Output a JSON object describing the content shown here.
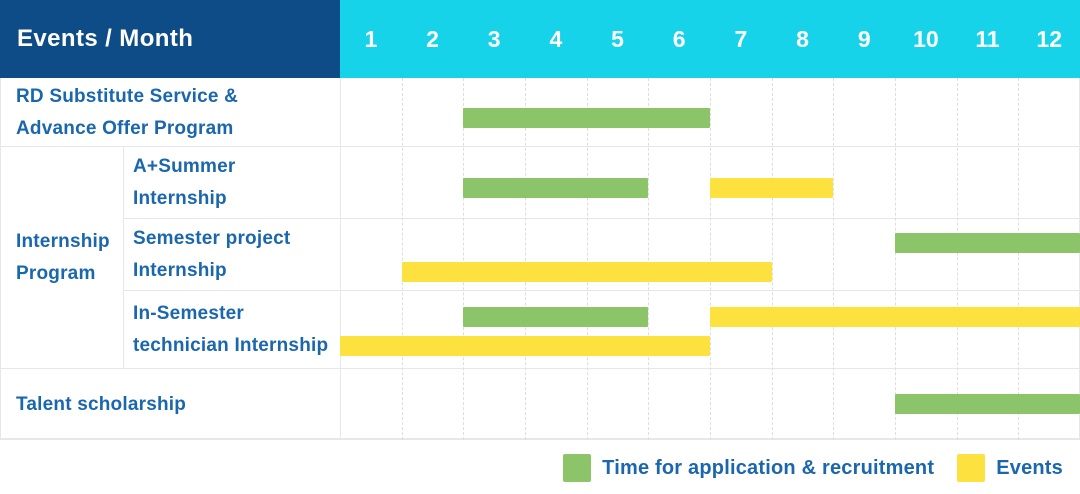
{
  "colors": {
    "navy": "#0d4c86",
    "cyan": "#16d3ea",
    "green": "#8cc46a",
    "yellow": "#fde23f",
    "label-blue": "#1a67ae",
    "grid": "#e7e7e7",
    "grid-dash": "#dedede"
  },
  "header": {
    "title": "Events / Month",
    "months": [
      "1",
      "2",
      "3",
      "4",
      "5",
      "6",
      "7",
      "8",
      "9",
      "10",
      "11",
      "12"
    ]
  },
  "sidebar": {
    "row1": {
      "line1": "RD Substitute Service &",
      "line2": "Advance Offer Program"
    },
    "group": {
      "line1": "Internship",
      "line2": "Program"
    },
    "sub1": {
      "line1": "A+Summer",
      "line2": "Internship"
    },
    "sub2": {
      "line1": "Semester project",
      "line2": "Internship"
    },
    "sub3": {
      "line1": "In-Semester",
      "line2": "technician Internship"
    },
    "row5": {
      "line1": "Talent scholarship"
    }
  },
  "legend": {
    "application": "Time for application & recruitment",
    "events": "Events"
  },
  "chart_data": {
    "type": "bar",
    "variant": "gantt",
    "title": "Events / Month",
    "x_axis": {
      "label": "Month",
      "ticks": [
        1,
        2,
        3,
        4,
        5,
        6,
        7,
        8,
        9,
        10,
        11,
        12
      ],
      "range": [
        1,
        12
      ]
    },
    "grid": "dashed vertical month separators",
    "legend_position": "bottom-right",
    "legend": [
      {
        "kind": "application",
        "label": "Time for application & recruitment",
        "color": "#8cc46a"
      },
      {
        "kind": "events",
        "label": "Events",
        "color": "#fde23f"
      }
    ],
    "tasks": [
      {
        "group": null,
        "name": "RD Substitute Service & Advance Offer Program",
        "spans": [
          {
            "kind": "application",
            "months": [
              3,
              6
            ]
          }
        ]
      },
      {
        "group": "Internship Program",
        "name": "A+Summer Internship",
        "spans": [
          {
            "kind": "application",
            "months": [
              3,
              5
            ]
          },
          {
            "kind": "events",
            "months": [
              7,
              8
            ]
          }
        ]
      },
      {
        "group": "Internship Program",
        "name": "Semester project Internship",
        "spans": [
          {
            "kind": "application",
            "months": [
              10,
              12
            ]
          },
          {
            "kind": "events",
            "months": [
              2,
              7
            ]
          }
        ]
      },
      {
        "group": "Internship Program",
        "name": "In-Semester technician Internship",
        "spans": [
          {
            "kind": "application",
            "months": [
              3,
              5
            ]
          },
          {
            "kind": "events",
            "months": [
              7,
              12
            ]
          },
          {
            "kind": "events",
            "months": [
              1,
              6
            ]
          }
        ]
      },
      {
        "group": null,
        "name": "Talent scholarship",
        "spans": [
          {
            "kind": "application",
            "months": [
              10,
              12
            ]
          }
        ]
      }
    ]
  }
}
